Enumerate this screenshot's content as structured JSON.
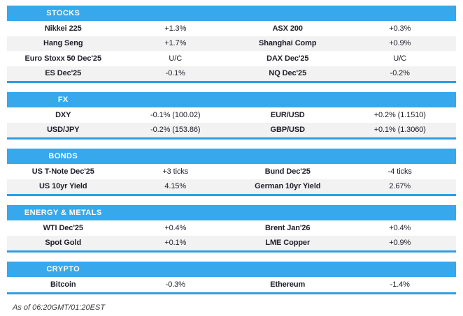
{
  "colors": {
    "header_bg": "#37a8ec",
    "section_border": "#2c9ee4",
    "row_alt_bg": "#f2f2f2",
    "text": "#20202c",
    "header_text": "#ffffff"
  },
  "sections": [
    {
      "title": "STOCKS",
      "rows": [
        [
          "Nikkei 225",
          "+1.3%",
          "ASX 200",
          "+0.3%"
        ],
        [
          "Hang Seng",
          "+1.7%",
          "Shanghai Comp",
          "+0.9%"
        ],
        [
          "Euro Stoxx 50 Dec'25",
          "U/C",
          "DAX Dec'25",
          "U/C"
        ],
        [
          "ES Dec'25",
          "-0.1%",
          "NQ Dec'25",
          "-0.2%"
        ]
      ]
    },
    {
      "title": "FX",
      "rows": [
        [
          "DXY",
          "-0.1% (100.02)",
          "EUR/USD",
          "+0.2% (1.1510)"
        ],
        [
          "USD/JPY",
          "-0.2% (153.86)",
          "GBP/USD",
          "+0.1% (1.3060)"
        ]
      ]
    },
    {
      "title": "BONDS",
      "rows": [
        [
          "US T-Note Dec'25",
          "+3 ticks",
          "Bund Dec'25",
          "-4 ticks"
        ],
        [
          "US 10yr Yield",
          "4.15%",
          "German 10yr Yield",
          "2.67%"
        ]
      ]
    },
    {
      "title": "ENERGY & METALS",
      "rows": [
        [
          "WTI Dec'25",
          "+0.4%",
          "Brent Jan'26",
          "+0.4%"
        ],
        [
          "Spot Gold",
          "+0.1%",
          "LME Copper",
          "+0.9%"
        ]
      ]
    },
    {
      "title": "CRYPTO",
      "rows": [
        [
          "Bitcoin",
          "-0.3%",
          "Ethereum",
          "-1.4%"
        ]
      ]
    }
  ],
  "footer": {
    "text": "As of 06:20GMT/01:20EST"
  }
}
